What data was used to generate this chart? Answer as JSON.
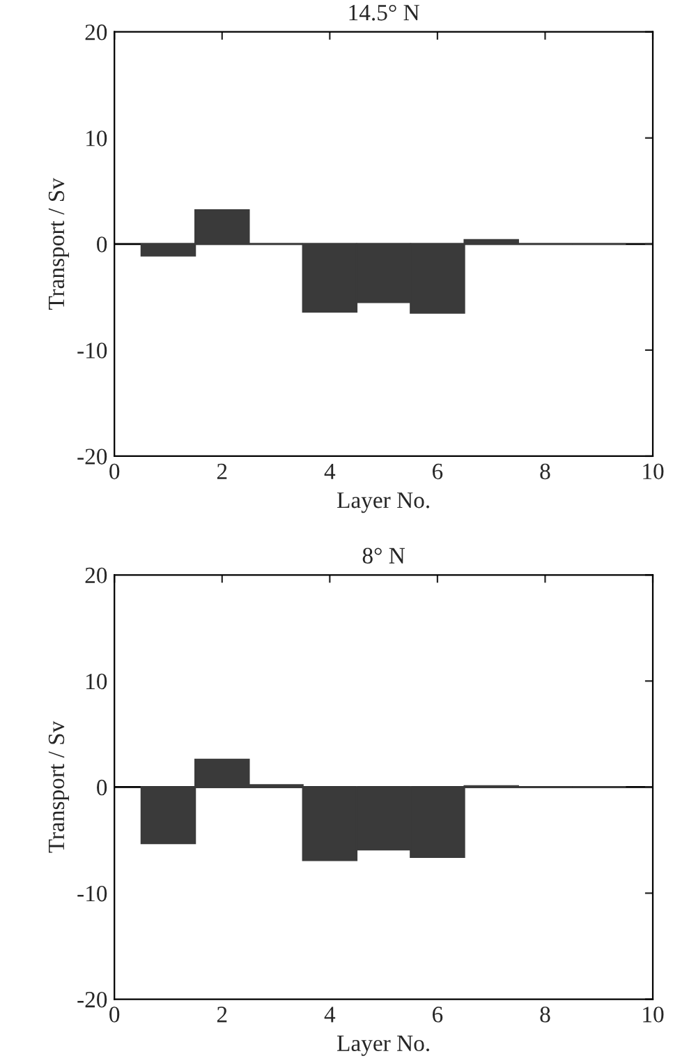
{
  "chart_data": [
    {
      "type": "bar",
      "title": "14.5° N",
      "xlabel": "Layer No.",
      "ylabel": "Transport / Sv",
      "x": [
        1,
        2,
        3,
        4,
        5,
        6,
        7,
        8,
        9
      ],
      "values": [
        -1.1,
        3.2,
        0,
        -6.4,
        -5.5,
        -6.5,
        0.4,
        0,
        0
      ],
      "color": "#3a3a3a",
      "xlim": [
        0,
        10
      ],
      "xticks": [
        0,
        2,
        4,
        6,
        8,
        10
      ],
      "ylim": [
        -20,
        20
      ],
      "yticks": [
        -20,
        -10,
        0,
        10,
        20
      ],
      "ref_lines": [
        {
          "axis": "y",
          "value": 0,
          "color": "#000000"
        }
      ],
      "grid": false,
      "legend": false
    },
    {
      "type": "bar",
      "title": "8° N",
      "xlabel": "Layer No.",
      "ylabel": "Transport / Sv",
      "x": [
        1,
        2,
        3,
        4,
        5,
        6,
        7,
        8,
        9
      ],
      "values": [
        -5.3,
        2.6,
        0.2,
        -6.9,
        -5.9,
        -6.6,
        0.1,
        0,
        0
      ],
      "color": "#3a3a3a",
      "xlim": [
        0,
        10
      ],
      "xticks": [
        0,
        2,
        4,
        6,
        8,
        10
      ],
      "ylim": [
        -20,
        20
      ],
      "yticks": [
        -20,
        -10,
        0,
        10,
        20
      ],
      "ref_lines": [
        {
          "axis": "y",
          "value": 0,
          "color": "#000000"
        }
      ],
      "grid": false,
      "legend": false
    }
  ]
}
